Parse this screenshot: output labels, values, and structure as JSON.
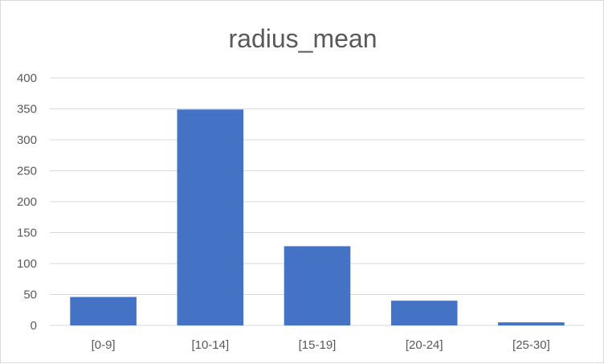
{
  "chart_data": {
    "type": "bar",
    "title": "radius_mean",
    "categories": [
      "[0-9]",
      "[10-14]",
      "[15-19]",
      "[20-24]",
      "[25-30]"
    ],
    "values": [
      46,
      349,
      128,
      40,
      5
    ],
    "ylim": [
      0,
      400
    ],
    "yticks": [
      0,
      50,
      100,
      150,
      200,
      250,
      300,
      350,
      400
    ],
    "grid": true,
    "legend": "none",
    "colors": {
      "bar": "#4472c4",
      "grid": "#d9d9d9",
      "axis": "#d9d9d9",
      "text": "#595959"
    }
  }
}
